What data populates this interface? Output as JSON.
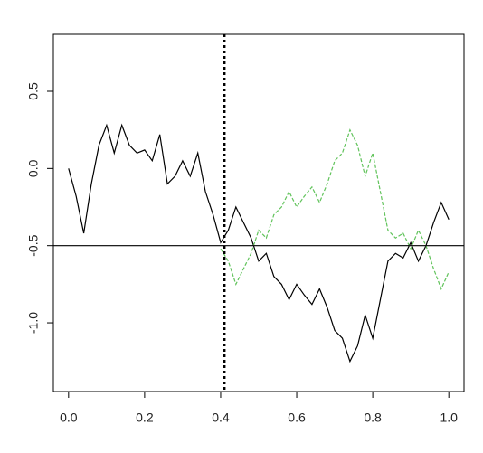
{
  "chart_data": {
    "type": "line",
    "x": [
      0,
      0.02,
      0.04,
      0.06,
      0.08,
      0.1,
      0.12,
      0.14,
      0.16,
      0.18,
      0.2,
      0.22,
      0.24,
      0.26,
      0.28,
      0.3,
      0.32,
      0.34,
      0.36,
      0.38,
      0.4,
      0.42,
      0.44,
      0.46,
      0.48,
      0.5,
      0.52,
      0.54,
      0.56,
      0.58,
      0.6,
      0.62,
      0.64,
      0.66,
      0.68,
      0.7,
      0.72,
      0.74,
      0.76,
      0.78,
      0.8,
      0.82,
      0.84,
      0.86,
      0.88,
      0.9,
      0.92,
      0.94,
      0.96,
      0.98,
      1
    ],
    "series": [
      {
        "color": "#000000",
        "dashed": false,
        "values": [
          0,
          -0.18,
          -0.42,
          -0.1,
          0.15,
          0.28,
          0.1,
          0.28,
          0.15,
          0.1,
          0.12,
          0.05,
          0.22,
          -0.1,
          -0.05,
          0.05,
          -0.05,
          0.1,
          -0.15,
          -0.3,
          -0.48,
          -0.4,
          -0.25,
          -0.35,
          -0.45,
          -0.6,
          -0.55,
          -0.7,
          -0.75,
          -0.85,
          -0.75,
          -0.82,
          -0.88,
          -0.78,
          -0.9,
          -1.05,
          -1.1,
          -1.25,
          -1.15,
          -0.95,
          -1.1,
          -0.85,
          -0.6,
          -0.55,
          -0.58,
          -0.48,
          -0.6,
          -0.5,
          -0.35,
          -0.22,
          -0.33
        ]
      },
      {
        "color": "#61c35b",
        "dashed": true,
        "values": [
          null,
          null,
          null,
          null,
          null,
          null,
          null,
          null,
          null,
          null,
          null,
          null,
          null,
          null,
          null,
          null,
          null,
          null,
          null,
          null,
          -0.52,
          -0.6,
          -0.75,
          -0.65,
          -0.55,
          -0.4,
          -0.45,
          -0.3,
          -0.25,
          -0.15,
          -0.25,
          -0.18,
          -0.12,
          -0.22,
          -0.1,
          0.05,
          0.1,
          0.25,
          0.15,
          -0.05,
          0.1,
          -0.15,
          -0.4,
          -0.45,
          -0.42,
          -0.52,
          -0.4,
          -0.5,
          -0.65,
          -0.78,
          -0.67
        ]
      }
    ],
    "hline": -0.5,
    "vline": 0.41,
    "xlim": [
      -0.04,
      1.04
    ],
    "ylim": [
      -1.445,
      0.869
    ],
    "xticks": [
      {
        "value": 0,
        "label": "0.0"
      },
      0.2,
      0.4,
      0.6,
      0.8,
      {
        "value": 1,
        "label": "1.0"
      }
    ],
    "yticks": [
      {
        "value": -1,
        "label": "-1.0"
      },
      -0.5,
      {
        "value": 0,
        "label": "0.0"
      },
      0.5
    ]
  }
}
